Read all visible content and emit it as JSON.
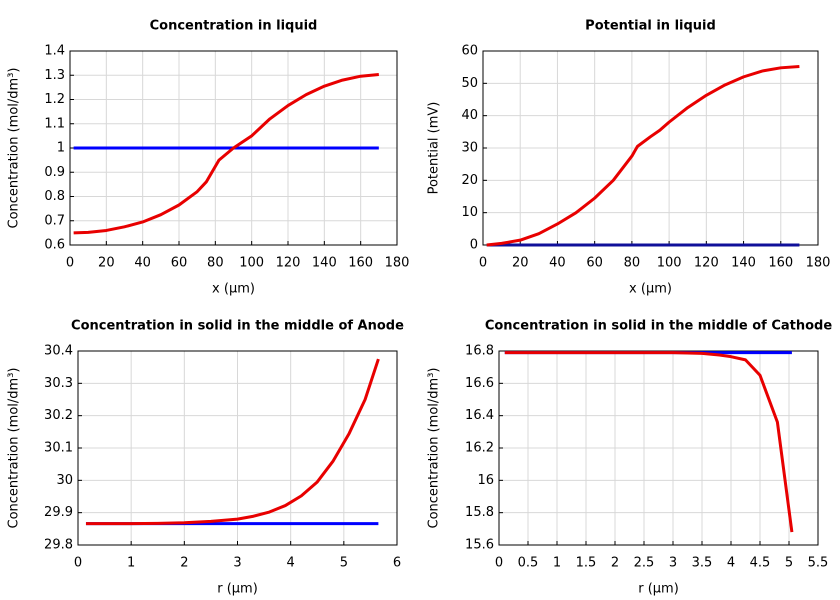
{
  "chart_data": [
    {
      "type": "line",
      "title": "Concentration in liquid",
      "xlabel": "x (µm)",
      "ylabel": "Concentration (mol/dm³)",
      "xlim": [
        0,
        180
      ],
      "xticks": [
        0,
        20,
        40,
        60,
        80,
        100,
        120,
        140,
        160,
        180
      ],
      "ylim": [
        0.6,
        1.4
      ],
      "yticks": [
        0.6,
        0.7,
        0.8,
        0.9,
        1,
        1.1,
        1.2,
        1.3,
        1.4
      ],
      "grid": true,
      "series": [
        {
          "color": "#0000ff",
          "x": [
            2,
            170
          ],
          "values": [
            1,
            1
          ]
        },
        {
          "color": "#e80000",
          "x": [
            2,
            10,
            20,
            30,
            40,
            50,
            60,
            70,
            75,
            82,
            90,
            100,
            110,
            120,
            130,
            140,
            150,
            160,
            170
          ],
          "values": [
            0.65,
            0.652,
            0.66,
            0.675,
            0.695,
            0.725,
            0.765,
            0.82,
            0.86,
            0.95,
            1.0,
            1.05,
            1.12,
            1.175,
            1.22,
            1.255,
            1.28,
            1.296,
            1.303
          ]
        }
      ]
    },
    {
      "type": "line",
      "title": "Potential in liquid",
      "xlabel": "x (µm)",
      "ylabel": "Potential (mV)",
      "xlim": [
        0,
        180
      ],
      "xticks": [
        0,
        20,
        40,
        60,
        80,
        100,
        120,
        140,
        160,
        180
      ],
      "ylim": [
        0,
        60
      ],
      "yticks": [
        0,
        10,
        20,
        30,
        40,
        50,
        60
      ],
      "grid": true,
      "series": [
        {
          "color": "#10109a",
          "x": [
            2,
            170
          ],
          "values": [
            0,
            0
          ]
        },
        {
          "color": "#e80000",
          "x": [
            2,
            10,
            20,
            30,
            40,
            50,
            60,
            70,
            80,
            83,
            90,
            95,
            100,
            110,
            120,
            130,
            140,
            150,
            160,
            170
          ],
          "values": [
            0,
            0.5,
            1.5,
            3.5,
            6.5,
            10,
            14.5,
            20,
            27.5,
            30.5,
            33.5,
            35.5,
            38,
            42.5,
            46.3,
            49.5,
            52,
            53.8,
            54.8,
            55.2
          ]
        }
      ]
    },
    {
      "type": "line",
      "title": "Concentration in solid in the middle of Anode",
      "xlabel": "r (µm)",
      "ylabel": "Concentration (mol/dm³)",
      "xlim": [
        0,
        6
      ],
      "xticks": [
        0,
        1,
        2,
        3,
        4,
        5,
        6
      ],
      "ylim": [
        29.8,
        30.4
      ],
      "yticks": [
        29.8,
        29.9,
        30,
        30.1,
        30.2,
        30.3,
        30.4
      ],
      "grid": true,
      "series": [
        {
          "color": "#0000ff",
          "x": [
            0.15,
            5.65
          ],
          "values": [
            29.866,
            29.866
          ]
        },
        {
          "color": "#e80000",
          "x": [
            0.15,
            1,
            1.5,
            2,
            2.5,
            3,
            3.3,
            3.6,
            3.9,
            4.2,
            4.5,
            4.8,
            5.1,
            5.4,
            5.65
          ],
          "values": [
            29.866,
            29.866,
            29.867,
            29.869,
            29.873,
            29.88,
            29.889,
            29.902,
            29.922,
            29.952,
            29.995,
            30.06,
            30.145,
            30.25,
            30.375
          ]
        }
      ]
    },
    {
      "type": "line",
      "title": "Concentration in solid in the middle of Cathode",
      "xlabel": "r (µm)",
      "ylabel": "Concentration (mol/dm³)",
      "xlim": [
        0,
        5.5
      ],
      "xticks": [
        0,
        0.5,
        1,
        1.5,
        2,
        2.5,
        3,
        3.5,
        4,
        4.5,
        5,
        5.5
      ],
      "ylim": [
        15.6,
        16.8
      ],
      "yticks": [
        15.6,
        15.8,
        16,
        16.2,
        16.4,
        16.6,
        16.8
      ],
      "grid": true,
      "series": [
        {
          "color": "#0000ff",
          "x": [
            0.1,
            5.05
          ],
          "values": [
            16.79,
            16.79
          ]
        },
        {
          "color": "#e80000",
          "x": [
            0.1,
            1,
            2,
            3,
            3.5,
            3.8,
            4.0,
            4.25,
            4.5,
            4.8,
            5.05
          ],
          "values": [
            16.79,
            16.79,
            16.79,
            16.79,
            16.785,
            16.775,
            16.765,
            16.745,
            16.65,
            16.36,
            15.68
          ]
        }
      ]
    }
  ]
}
